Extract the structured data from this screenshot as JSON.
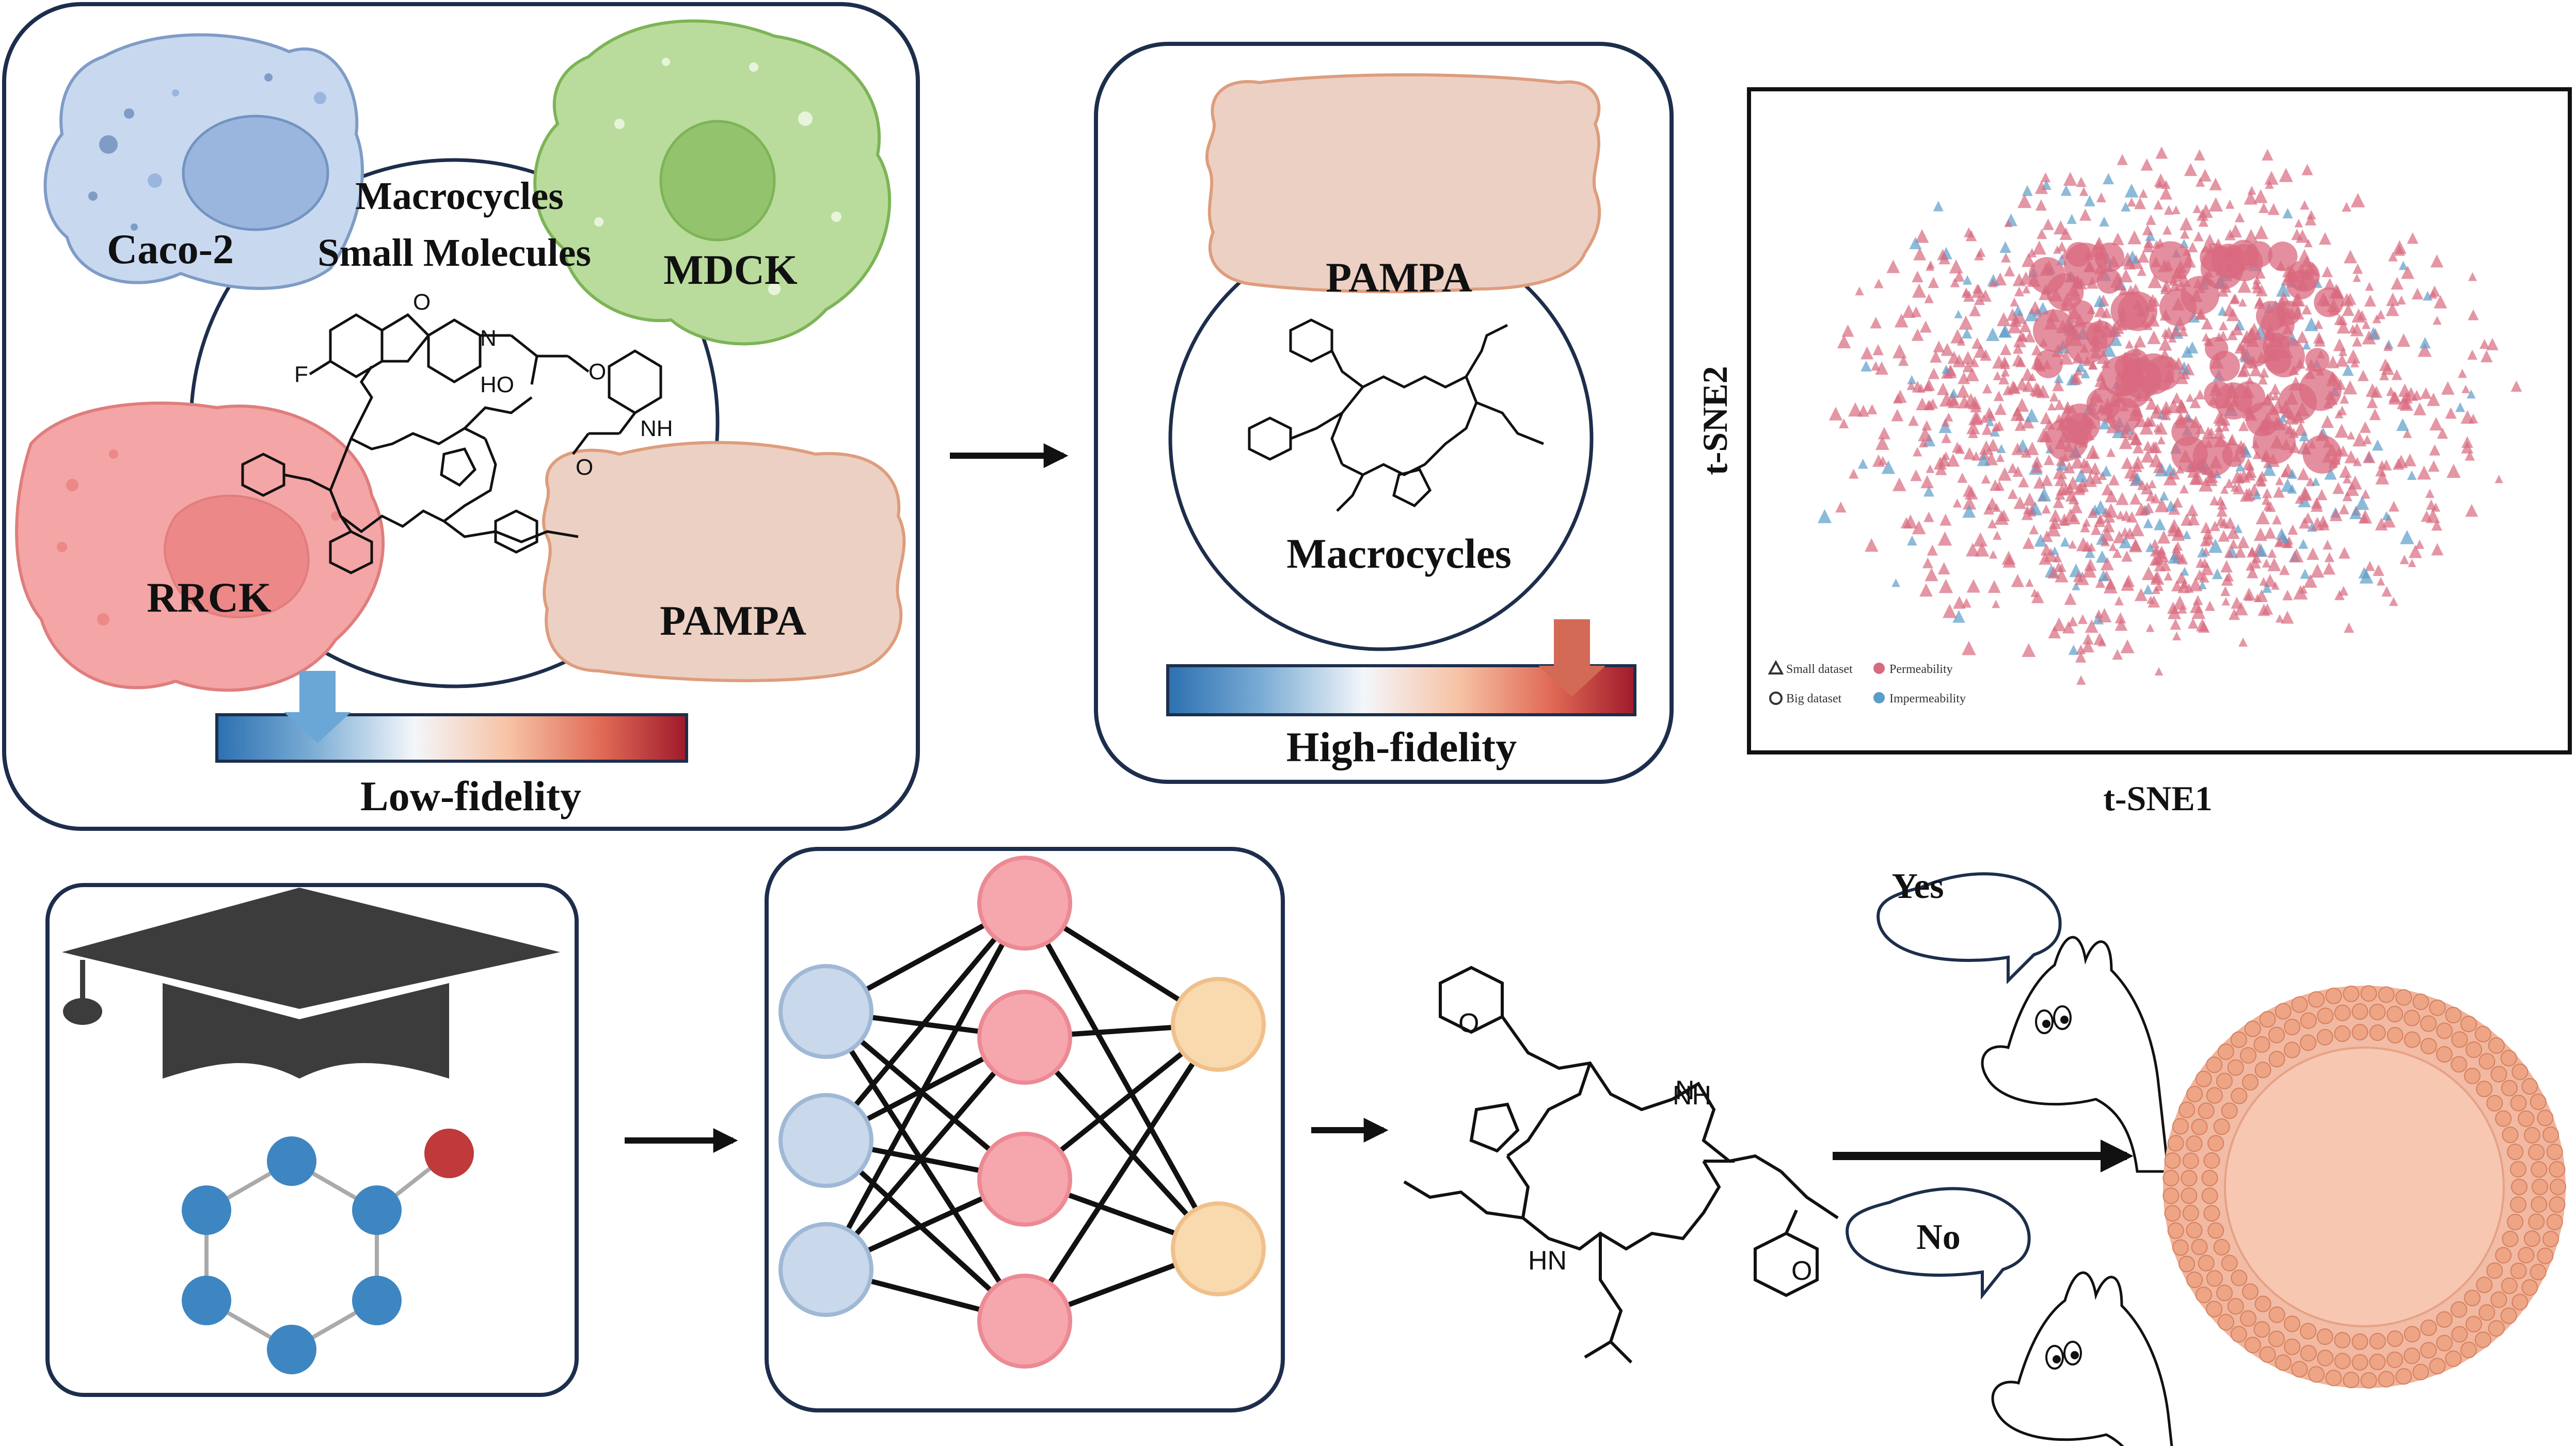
{
  "panel_low": {
    "cells": {
      "caco2": "Caco-2",
      "mdck": "MDCK",
      "rrck": "RRCK",
      "pampa": "PAMPA"
    },
    "center_line1": "Macrocycles",
    "center_line2": "Small Molecules",
    "fidelity_label": "Low-fidelity",
    "atoms": {
      "f": "F",
      "o": "O",
      "n": "N",
      "ho": "HO",
      "nh": "NH"
    }
  },
  "panel_high": {
    "pampa": "PAMPA",
    "macrocycles": "Macrocycles",
    "fidelity_label": "High-fidelity"
  },
  "tsne": {
    "xlabel": "t-SNE1",
    "ylabel": "t-SNE2",
    "legend": {
      "small": "Small dataset",
      "big": "Big dataset",
      "perm": "Permeability",
      "imperm": "Impermeability"
    },
    "colors": {
      "perm": "#d9697f",
      "imperm": "#5b9cc9"
    }
  },
  "bottom": {
    "bubble_yes": "Yes",
    "bubble_no": "No",
    "atoms": {
      "o": "O",
      "n": "N",
      "nh": "NH",
      "hn": "HN"
    }
  },
  "colors": {
    "caco2": "#c8d9ef",
    "mdck": "#b9dc9c",
    "rrck": "#f4a5a5",
    "pampa": "#ecd0c3",
    "input_node": "#c9d8ea",
    "hidden_node": "#f6a6ad",
    "output_node": "#f9d9ae",
    "graph_node": "#3d86c1",
    "graph_red": "#c0393b"
  }
}
